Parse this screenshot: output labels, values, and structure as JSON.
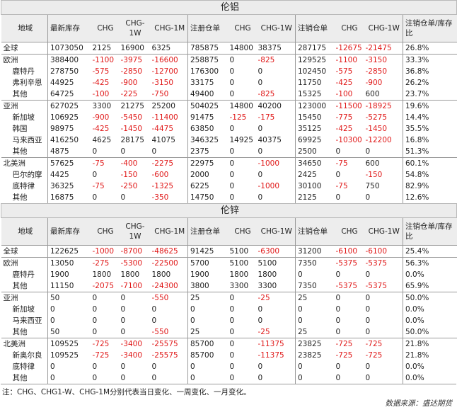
{
  "columns": [
    "地域",
    "最新库存",
    "CHG",
    "CHG-1W",
    "CHG-1M",
    "注册仓单",
    "CHG",
    "CHG-1W",
    "注销仓单",
    "CHG",
    "CHG-1W",
    "注销仓单/库存比"
  ],
  "tables": [
    {
      "title": "伦铝",
      "rows": [
        {
          "region": "全球",
          "level": 0,
          "cells": [
            "1073050",
            "2125",
            "16900",
            "6325",
            "785875",
            "14800",
            "38375",
            "287175",
            "-12675",
            "-21475",
            "26.8%"
          ]
        },
        {
          "region": "欧洲",
          "level": 0,
          "cells": [
            "388400",
            "-1100",
            "-3975",
            "-16600",
            "258875",
            "0",
            "-825",
            "129525",
            "-1100",
            "-3150",
            "33.3%"
          ]
        },
        {
          "region": "鹿特丹",
          "level": 1,
          "cells": [
            "278750",
            "-575",
            "-2850",
            "-12700",
            "176300",
            "0",
            "0",
            "102450",
            "-575",
            "-2850",
            "36.8%"
          ]
        },
        {
          "region": "弗利辛恩",
          "level": 1,
          "cells": [
            "44925",
            "-425",
            "-900",
            "-3150",
            "33175",
            "0",
            "0",
            "11750",
            "-425",
            "-900",
            "26.2%"
          ]
        },
        {
          "region": "其他",
          "level": 1,
          "cells": [
            "64725",
            "-100",
            "-225",
            "-750",
            "49400",
            "0",
            "-825",
            "15325",
            "-100",
            "600",
            "23.7%"
          ]
        },
        {
          "region": "亚洲",
          "level": 0,
          "cells": [
            "627025",
            "3300",
            "21275",
            "25200",
            "504025",
            "14800",
            "40200",
            "123000",
            "-11500",
            "-18925",
            "19.6%"
          ]
        },
        {
          "region": "新加坡",
          "level": 1,
          "cells": [
            "106925",
            "-900",
            "-5450",
            "-11400",
            "91475",
            "-125",
            "-175",
            "15450",
            "-775",
            "-5275",
            "14.4%"
          ]
        },
        {
          "region": "韩国",
          "level": 1,
          "cells": [
            "98975",
            "-425",
            "-1450",
            "-4475",
            "63850",
            "0",
            "0",
            "35125",
            "-425",
            "-1450",
            "35.5%"
          ]
        },
        {
          "region": "马来西亚",
          "level": 1,
          "cells": [
            "416250",
            "4625",
            "28175",
            "41075",
            "346325",
            "14925",
            "40375",
            "69925",
            "-10300",
            "-12200",
            "16.8%"
          ]
        },
        {
          "region": "其他",
          "level": 1,
          "cells": [
            "4875",
            "0",
            "0",
            "0",
            "2375",
            "0",
            "0",
            "2500",
            "0",
            "0",
            "51.3%"
          ]
        },
        {
          "region": "北美洲",
          "level": 0,
          "cells": [
            "57625",
            "-75",
            "-400",
            "-2275",
            "22975",
            "0",
            "-1000",
            "34650",
            "-75",
            "600",
            "60.1%"
          ]
        },
        {
          "region": "巴尔的摩",
          "level": 1,
          "cells": [
            "4425",
            "0",
            "-150",
            "-600",
            "2000",
            "0",
            "0",
            "2425",
            "0",
            "-150",
            "54.8%"
          ]
        },
        {
          "region": "底特律",
          "level": 1,
          "cells": [
            "36325",
            "-75",
            "-250",
            "-1325",
            "6225",
            "0",
            "-1000",
            "30100",
            "-75",
            "750",
            "82.9%"
          ]
        },
        {
          "region": "其他",
          "level": 1,
          "cells": [
            "16875",
            "0",
            "0",
            "-350",
            "14750",
            "0",
            "0",
            "2125",
            "0",
            "0",
            "12.6%"
          ]
        }
      ]
    },
    {
      "title": "伦锌",
      "rows": [
        {
          "region": "全球",
          "level": 0,
          "cells": [
            "122625",
            "-1000",
            "-8700",
            "-48625",
            "91425",
            "5100",
            "-6300",
            "31200",
            "-6100",
            "-6100",
            "25.4%"
          ]
        },
        {
          "region": "欧洲",
          "level": 0,
          "cells": [
            "13050",
            "-275",
            "-5300",
            "-22500",
            "5700",
            "5100",
            "5100",
            "7350",
            "-5375",
            "-5375",
            "56.3%"
          ]
        },
        {
          "region": "鹿特丹",
          "level": 1,
          "cells": [
            "1900",
            "1800",
            "1800",
            "1800",
            "1900",
            "1800",
            "1800",
            "0",
            "0",
            "0",
            "0.0%"
          ]
        },
        {
          "region": "其他",
          "level": 1,
          "cells": [
            "11150",
            "-2075",
            "-7100",
            "-24300",
            "3800",
            "3300",
            "3300",
            "7350",
            "-5375",
            "-5375",
            "65.9%"
          ]
        },
        {
          "region": "亚洲",
          "level": 0,
          "cells": [
            "50",
            "0",
            "0",
            "-550",
            "25",
            "0",
            "-25",
            "25",
            "0",
            "0",
            "50.0%"
          ]
        },
        {
          "region": "新加坡",
          "level": 1,
          "cells": [
            "0",
            "0",
            "0",
            "0",
            "0",
            "0",
            "0",
            "0",
            "0",
            "0",
            "0.0%"
          ]
        },
        {
          "region": "马来西亚",
          "level": 1,
          "cells": [
            "0",
            "0",
            "0",
            "0",
            "0",
            "0",
            "0",
            "0",
            "0",
            "0",
            "0.0%"
          ]
        },
        {
          "region": "其他",
          "level": 1,
          "cells": [
            "50",
            "0",
            "0",
            "-550",
            "25",
            "0",
            "-25",
            "25",
            "0",
            "0",
            "50.0%"
          ]
        },
        {
          "region": "北美洲",
          "level": 0,
          "cells": [
            "109525",
            "-725",
            "-3400",
            "-25575",
            "85700",
            "0",
            "-11375",
            "23825",
            "-725",
            "-725",
            "21.8%"
          ]
        },
        {
          "region": "新奥尔良",
          "level": 1,
          "cells": [
            "109525",
            "-725",
            "-3400",
            "-25575",
            "85700",
            "0",
            "-11375",
            "23825",
            "-725",
            "-725",
            "21.8%"
          ]
        },
        {
          "region": "底特律",
          "level": 1,
          "cells": [
            "0",
            "0",
            "0",
            "0",
            "0",
            "0",
            "0",
            "0",
            "0",
            "0",
            "0.0%"
          ]
        },
        {
          "region": "其他",
          "level": 1,
          "cells": [
            "0",
            "0",
            "0",
            "0",
            "0",
            "0",
            "0",
            "0",
            "0",
            "0",
            "0.0%"
          ]
        }
      ]
    }
  ],
  "note": "注：CHG、CHG1-W、CHG-1M分别代表当日变化、一周变化、一月变化。",
  "source": "数据来源：盛达期货",
  "colors": {
    "negative": "#e01818",
    "header_bg": "#ededed",
    "border": "#9a9a9a"
  }
}
